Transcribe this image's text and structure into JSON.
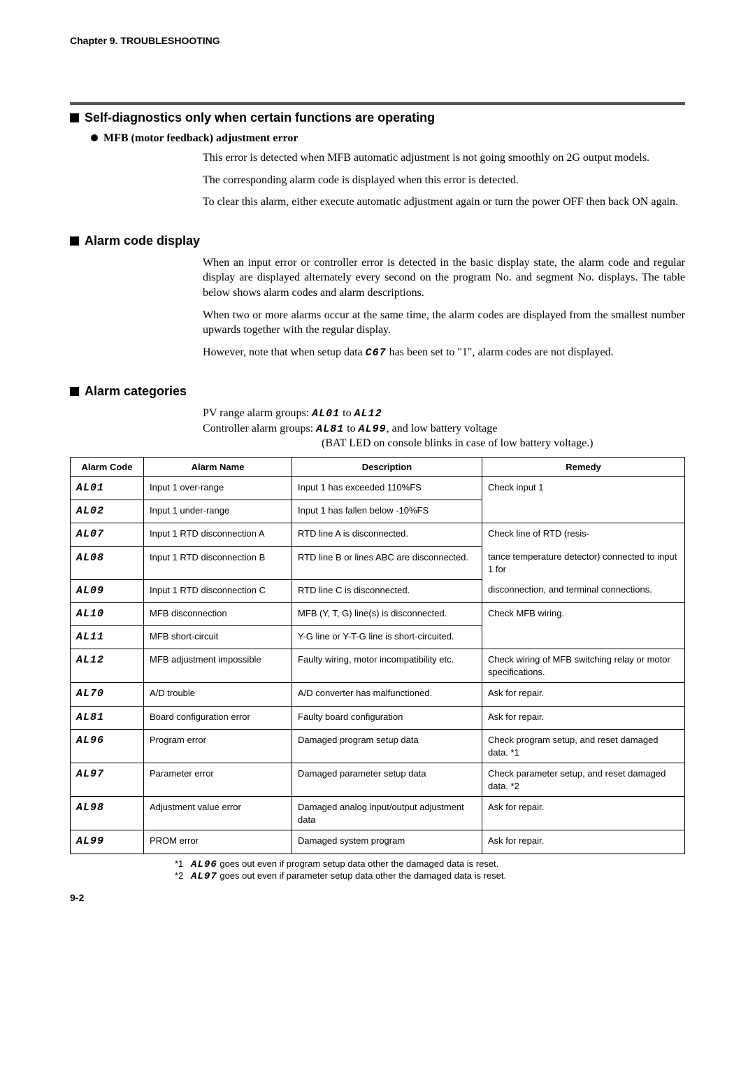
{
  "chapter_header": "Chapter 9. TROUBLESHOOTING",
  "section1": {
    "title": "Self-diagnostics only when certain functions are operating",
    "sub_title": "MFB (motor feedback) adjustment error",
    "p1": "This error is detected when MFB automatic adjustment is not going smoothly on 2G output models.",
    "p2": "The corresponding alarm code is displayed when this error is detected.",
    "p3": "To clear this alarm, either execute automatic adjustment again or turn the power OFF then back ON again."
  },
  "section2": {
    "title": "Alarm code display",
    "p1": "When an input error or controller error is detected in the basic display state, the alarm code and regular display are displayed alternately every second on the program No. and segment No. displays. The table below shows alarm codes and alarm descriptions.",
    "p2": "When two or more alarms occur at the same time, the alarm codes are displayed from the smallest number upwards together with the regular display.",
    "p3a": "However, note that when setup data ",
    "p3_code": "C67",
    "p3b": " has been set to \"1\", alarm codes are not displayed."
  },
  "section3": {
    "title": "Alarm categories",
    "pv_label": "PV range alarm groups:  ",
    "pv_from": "AL01",
    "pv_to_word": " to ",
    "pv_to": "AL12",
    "ctrl_label": "Controller alarm groups:  ",
    "ctrl_from": "AL81",
    "ctrl_to": "AL99",
    "ctrl_tail": ", and low battery voltage",
    "bat_note": "(BAT LED on console blinks in case of low battery voltage.)"
  },
  "table": {
    "headers": [
      "Alarm Code",
      "Alarm Name",
      "Description",
      "Remedy"
    ],
    "rows": [
      {
        "code": "AL01",
        "name": "Input 1 over-range",
        "desc": "Input 1 has exceeded 110%FS",
        "remedy": "Check input 1",
        "mergeRemedyDown": true
      },
      {
        "code": "AL02",
        "name": "Input 1 under-range",
        "desc": "Input 1 has fallen below -10%FS",
        "remedy": "",
        "remedyHidden": true
      },
      {
        "code": "AL07",
        "name": "Input 1 RTD disconnection A",
        "desc": "RTD line A is disconnected.",
        "remedy": "Check line of RTD (resis-",
        "mergeRemedyDown": true
      },
      {
        "code": "AL08",
        "name": "Input 1 RTD disconnection B",
        "desc": "RTD line B or lines ABC are disconnected.",
        "remedy": "tance temperature detector) connected to input 1 for",
        "remedyMiddle": true
      },
      {
        "code": "AL09",
        "name": "Input 1 RTD disconnection C",
        "desc": "RTD line C is disconnected.",
        "remedy": "disconnection, and terminal connections.",
        "remedyBottom": true
      },
      {
        "code": "AL10",
        "name": "MFB disconnection",
        "desc": "MFB (Y, T, G) line(s) is disconnected.",
        "remedy": "Check MFB wiring.",
        "mergeRemedyDown": true
      },
      {
        "code": "AL11",
        "name": "MFB short-circuit",
        "desc": "Y-G line or Y-T-G line is short-circuited.",
        "remedy": "",
        "remedyHidden": true
      },
      {
        "code": "AL12",
        "name": "MFB adjustment impossible",
        "desc": "Faulty wiring, motor incompatibility etc.",
        "remedy": "Check wiring of MFB switching relay or motor specifications."
      },
      {
        "code": "AL70",
        "name": "A/D trouble",
        "desc": "A/D converter has malfunctioned.",
        "remedy": "Ask for repair."
      },
      {
        "code": "AL81",
        "name": "Board configuration error",
        "desc": "Faulty board configuration",
        "remedy": "Ask for repair."
      },
      {
        "code": "AL96",
        "name": "Program error",
        "desc": "Damaged program setup data",
        "remedy": "Check program setup, and reset damaged data. *1"
      },
      {
        "code": "AL97",
        "name": "Parameter error",
        "desc": "Damaged parameter setup data",
        "remedy": "Check parameter setup, and reset damaged data. *2"
      },
      {
        "code": "AL98",
        "name": "Adjustment value error",
        "desc": "Damaged analog input/output adjustment data",
        "remedy": "Ask for repair."
      },
      {
        "code": "AL99",
        "name": "PROM error",
        "desc": "Damaged system program",
        "remedy": "Ask for repair."
      }
    ]
  },
  "footnotes": {
    "f1_label": "*1",
    "f1_code": "AL96",
    "f1_text": " goes out even if program setup data other the damaged data is reset.",
    "f2_label": "*2",
    "f2_code": "AL97",
    "f2_text": " goes out even if parameter setup data other the damaged data is reset."
  },
  "page_num": "9-2"
}
